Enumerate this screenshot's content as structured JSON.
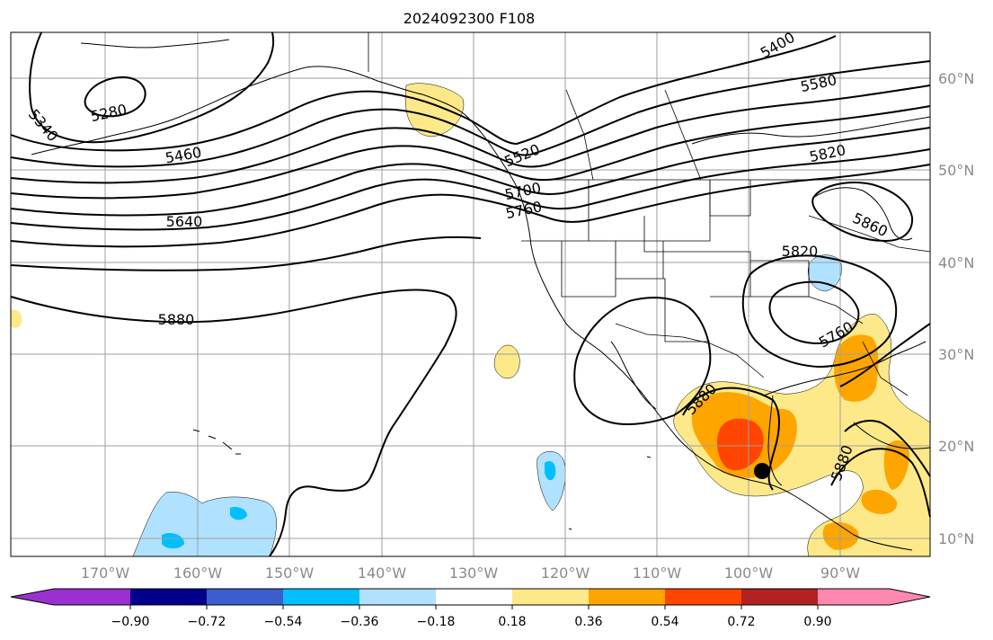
{
  "title": "2024092300 F108",
  "lon_labels": [
    "170°W",
    "160°W",
    "150°W",
    "140°W",
    "130°W",
    "120°W",
    "110°W",
    "100°W",
    "90°W"
  ],
  "lat_labels": [
    "60°N",
    "50°N",
    "40°N",
    "30°N",
    "20°N",
    "10°N"
  ],
  "contour_labels": [
    "5280",
    "5340",
    "5400",
    "5460",
    "5520",
    "5580",
    "5640",
    "5700",
    "5760",
    "5820",
    "5880",
    "5820",
    "5860",
    "5760",
    "5880",
    "5880"
  ],
  "colorbar": {
    "ticks": [
      "−0.90",
      "−0.72",
      "−0.54",
      "−0.36",
      "−0.18",
      "0.18",
      "0.36",
      "0.54",
      "0.72",
      "0.90"
    ],
    "colors": [
      "#9b30d0",
      "#00008b",
      "#3a5fcd",
      "#00bfff",
      "#b0e2ff",
      "#ffffff",
      "#fde98a",
      "#ffa500",
      "#ff4500",
      "#b22222",
      "#ff88b0"
    ]
  },
  "marker": "black-dot-storm-center"
}
